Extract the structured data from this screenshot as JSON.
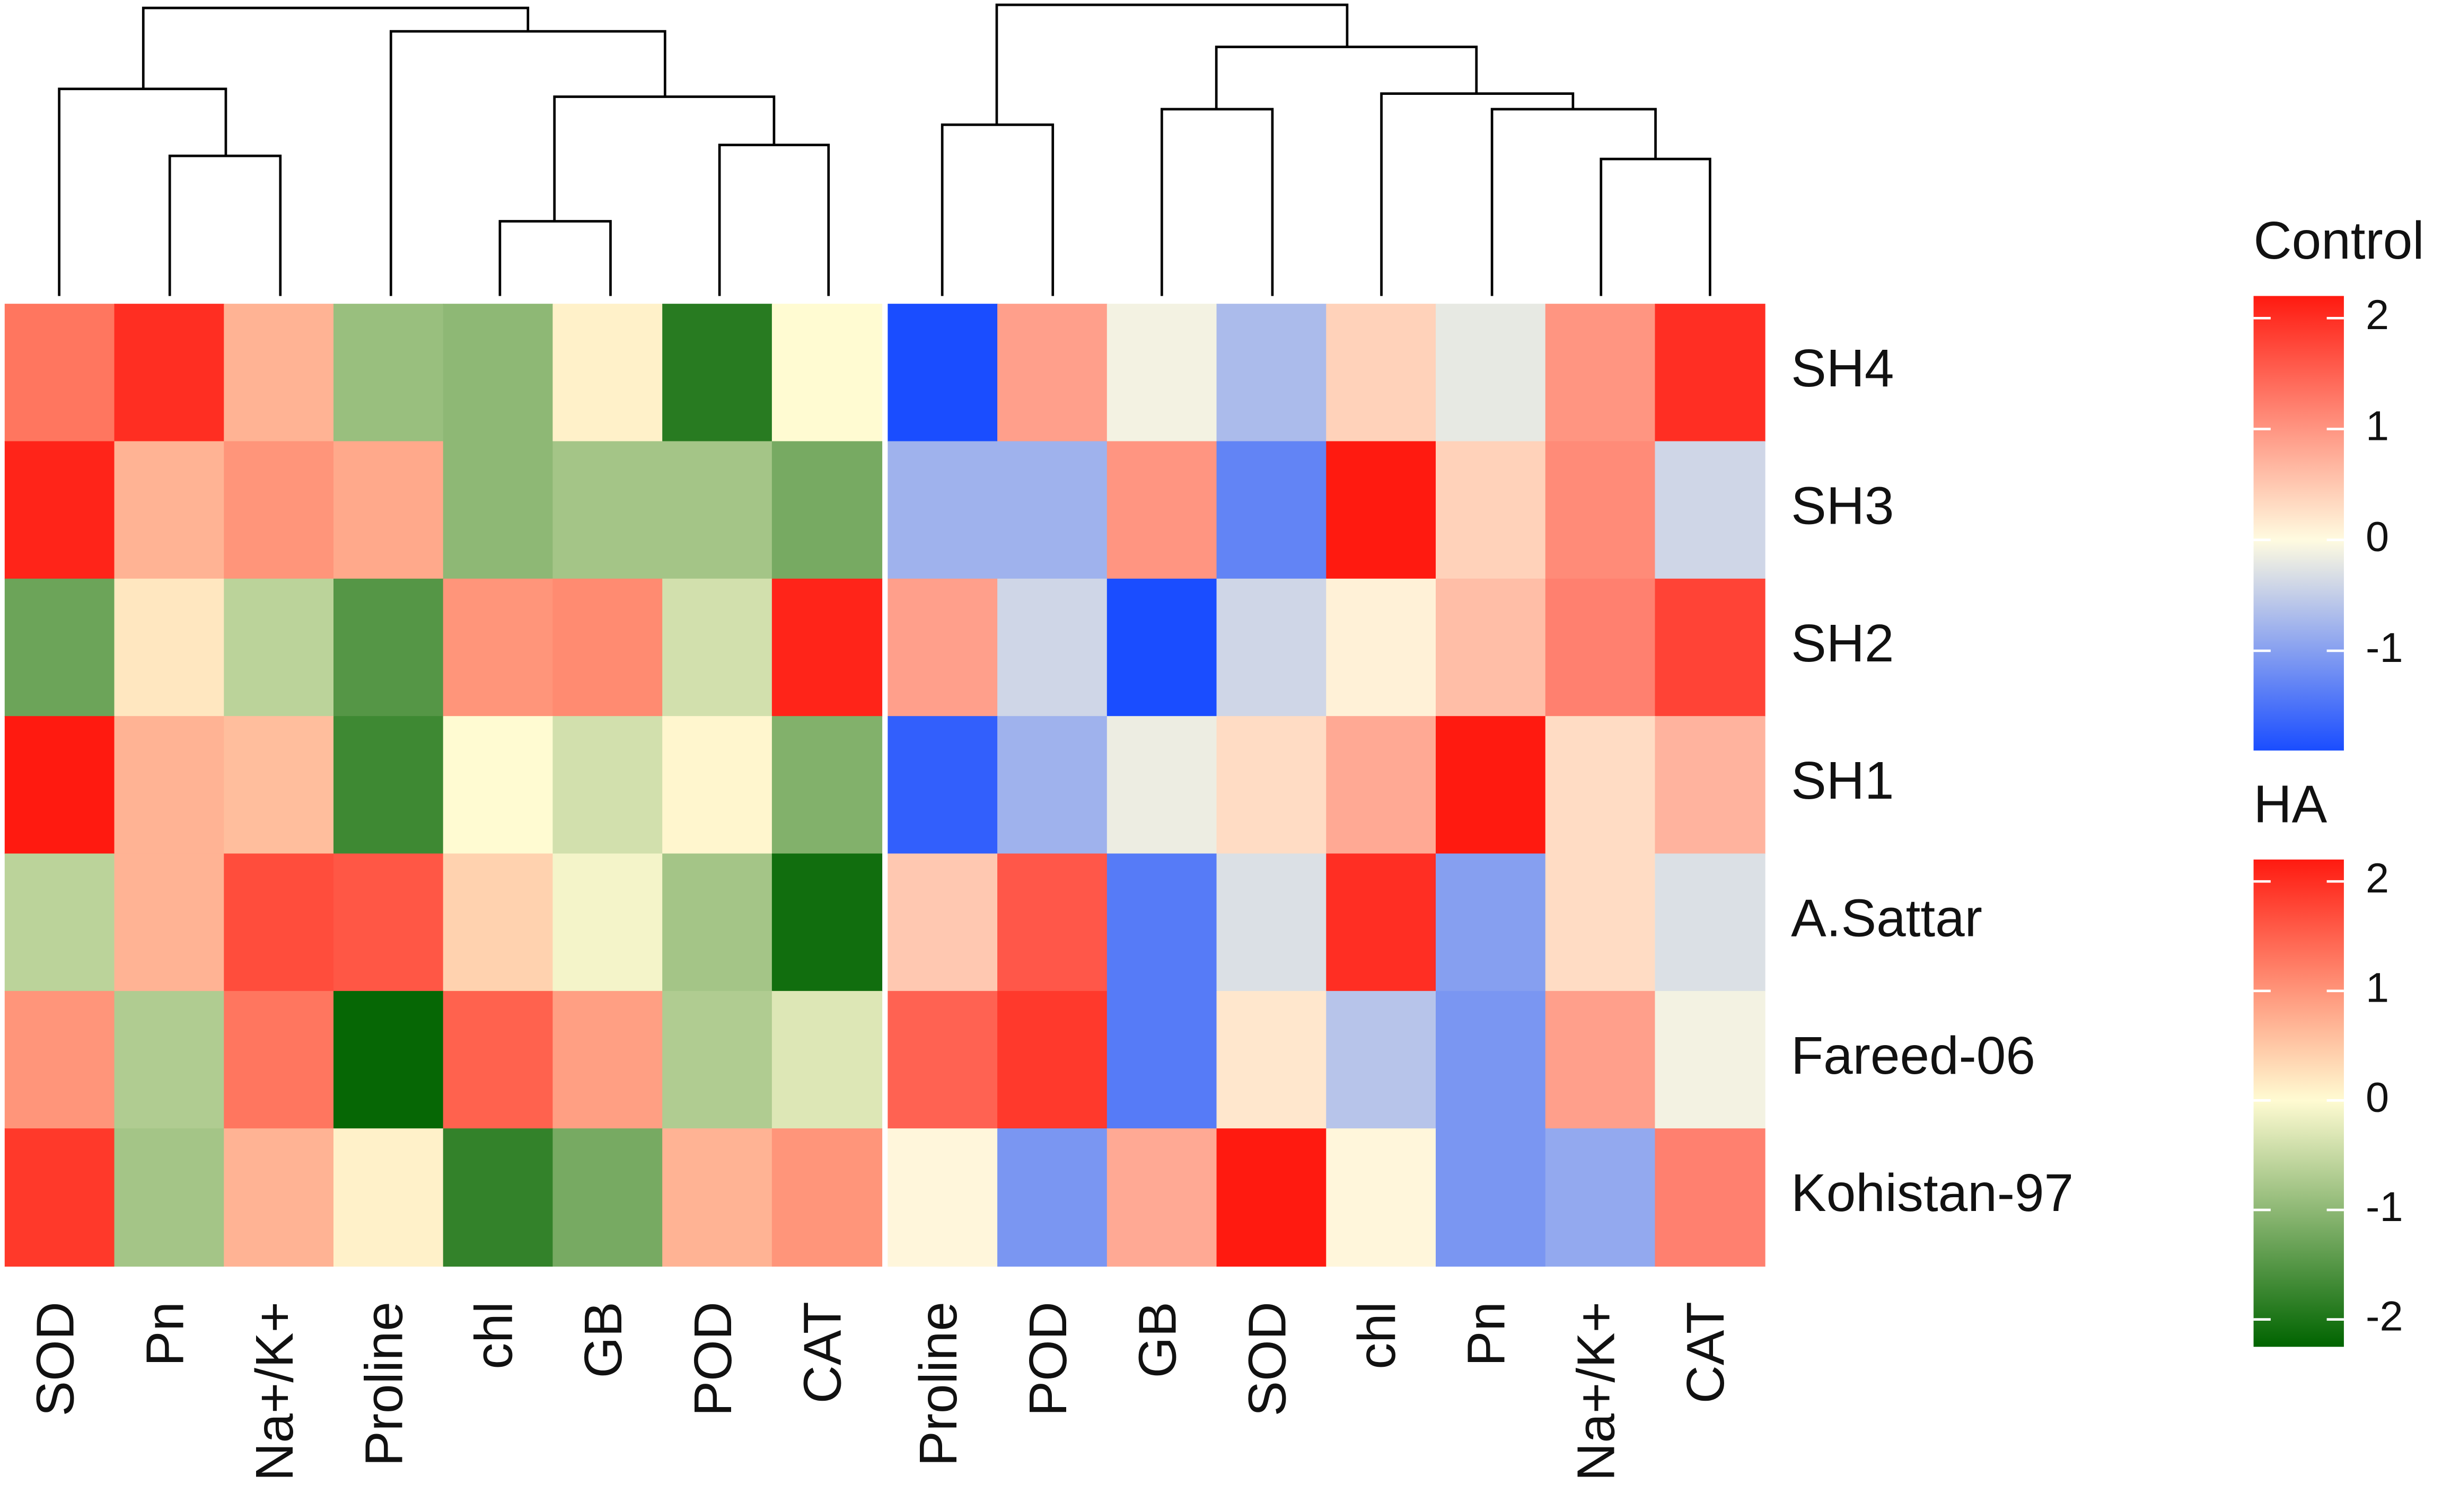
{
  "chart_data": {
    "type": "heatmap",
    "rows": [
      "SH4",
      "SH3",
      "SH2",
      "SH1",
      "A.Sattar",
      "Fareed-06",
      "Kohistan-97"
    ],
    "panels": [
      {
        "name": "HA",
        "columns": [
          "SOD",
          "Pn",
          "Na+/K+",
          "Proline",
          "chl",
          "GB",
          "POD",
          "CAT"
        ],
        "values": [
          [
            1.3,
            2.0,
            0.7,
            -0.9,
            -1.0,
            0.1,
            -1.9,
            0.0
          ],
          [
            2.1,
            0.7,
            1.0,
            0.8,
            -1.0,
            -0.8,
            -0.8,
            -1.2
          ],
          [
            -1.3,
            0.2,
            -0.6,
            -1.5,
            1.0,
            1.1,
            -0.4,
            2.1
          ],
          [
            2.2,
            0.7,
            0.6,
            -1.7,
            0.0,
            -0.4,
            0.05,
            -1.1
          ],
          [
            -0.6,
            0.7,
            1.7,
            1.6,
            0.4,
            -0.1,
            -0.8,
            -2.1
          ],
          [
            1.0,
            -0.7,
            1.3,
            -2.2,
            1.5,
            0.9,
            -0.7,
            -0.3
          ],
          [
            1.9,
            -0.8,
            0.7,
            0.1,
            -1.8,
            -1.2,
            0.7,
            1.0
          ]
        ],
        "colors": [
          "#006400",
          "#fffbd2",
          "#ff1a10"
        ],
        "zlim": [
          -2.25,
          2.2
        ],
        "zticks": [
          2,
          1,
          0,
          -1,
          -2
        ]
      },
      {
        "name": "Control",
        "columns": [
          "Proline",
          "POD",
          "GB",
          "SOD",
          "chl",
          "Pn",
          "Na+/K+",
          "CAT"
        ],
        "values": [
          [
            -1.9,
            0.9,
            -0.1,
            -0.7,
            0.4,
            -0.2,
            1.0,
            2.0
          ],
          [
            -0.8,
            -0.8,
            1.0,
            -1.3,
            2.2,
            0.4,
            1.1,
            -0.4
          ],
          [
            0.9,
            -0.4,
            -2.0,
            -0.4,
            0.1,
            0.6,
            1.2,
            1.8
          ],
          [
            -1.7,
            -0.8,
            -0.15,
            0.3,
            0.8,
            2.2,
            0.3,
            0.7
          ],
          [
            0.5,
            1.6,
            -1.4,
            -0.3,
            2.0,
            -1.0,
            0.3,
            -0.3
          ],
          [
            1.5,
            1.9,
            -1.4,
            0.2,
            -0.6,
            -1.1,
            0.9,
            -0.1
          ],
          [
            0.05,
            -1.1,
            0.8,
            2.2,
            0.05,
            -1.1,
            -0.9,
            1.2
          ]
        ],
        "colors": [
          "#1a4dff",
          "#fffbe0",
          "#ff1a10"
        ],
        "zlim": [
          -1.9,
          2.2
        ],
        "zticks": [
          2,
          1,
          0,
          -1
        ]
      }
    ]
  }
}
